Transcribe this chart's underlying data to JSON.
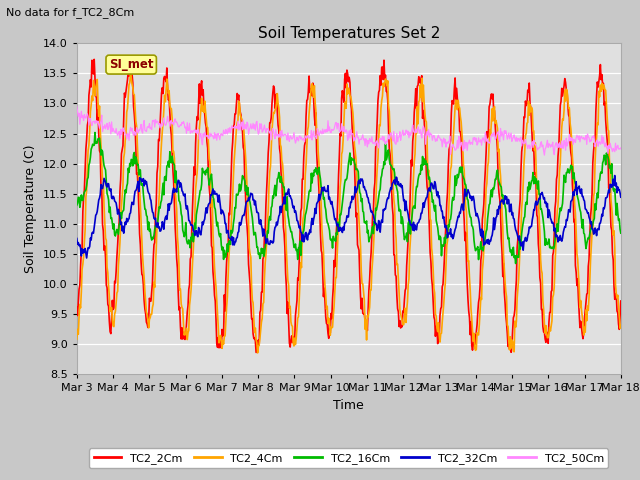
{
  "title": "Soil Temperatures Set 2",
  "subtitle": "No data for f_TC2_8Cm",
  "xlabel": "Time",
  "ylabel": "Soil Temperature (C)",
  "ylim": [
    8.5,
    14.0
  ],
  "yticks": [
    8.5,
    9.0,
    9.5,
    10.0,
    10.5,
    11.0,
    11.5,
    12.0,
    12.5,
    13.0,
    13.5,
    14.0
  ],
  "date_labels": [
    "Mar 3",
    "Mar 4",
    "Mar 5",
    "Mar 6",
    "Mar 7",
    "Mar 8",
    "Mar 9",
    "Mar 10",
    "Mar 11",
    "Mar 12",
    "Mar 13",
    "Mar 14",
    "Mar 15",
    "Mar 16",
    "Mar 17",
    "Mar 18"
  ],
  "series": {
    "TC2_2Cm": {
      "color": "#ff0000",
      "lw": 1.2
    },
    "TC2_4Cm": {
      "color": "#ffa500",
      "lw": 1.2
    },
    "TC2_16Cm": {
      "color": "#00bb00",
      "lw": 1.2
    },
    "TC2_32Cm": {
      "color": "#0000cc",
      "lw": 1.2
    },
    "TC2_50Cm": {
      "color": "#ff88ff",
      "lw": 0.9
    }
  },
  "legend_box_color": "#ffff99",
  "legend_box_text": "SI_met",
  "fig_facecolor": "#c8c8c8",
  "plot_bg_color": "#e0e0e0",
  "n_points": 720
}
